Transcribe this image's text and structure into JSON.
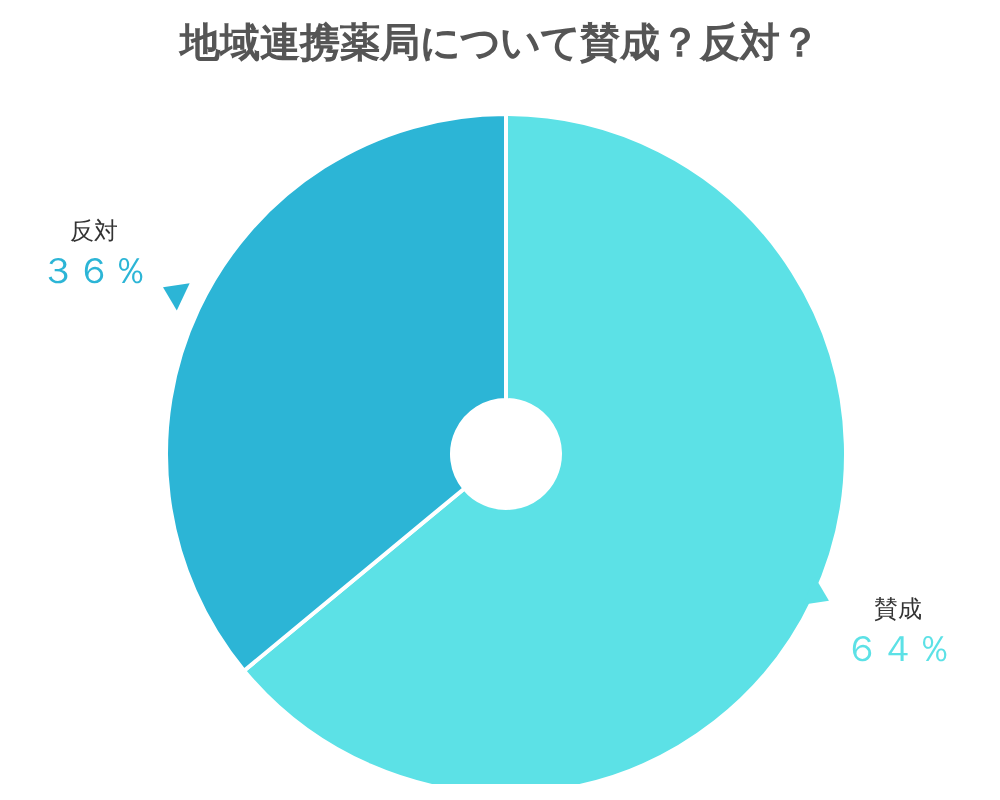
{
  "chart_data": {
    "type": "donut",
    "title": "地域連携薬局について賛成？反対？",
    "categories": [
      "賛成",
      "反対"
    ],
    "values": [
      64,
      36
    ],
    "value_labels": [
      "６４％",
      "３６％"
    ],
    "colors": [
      "#5ce1e6",
      "#2cb5d6"
    ]
  }
}
